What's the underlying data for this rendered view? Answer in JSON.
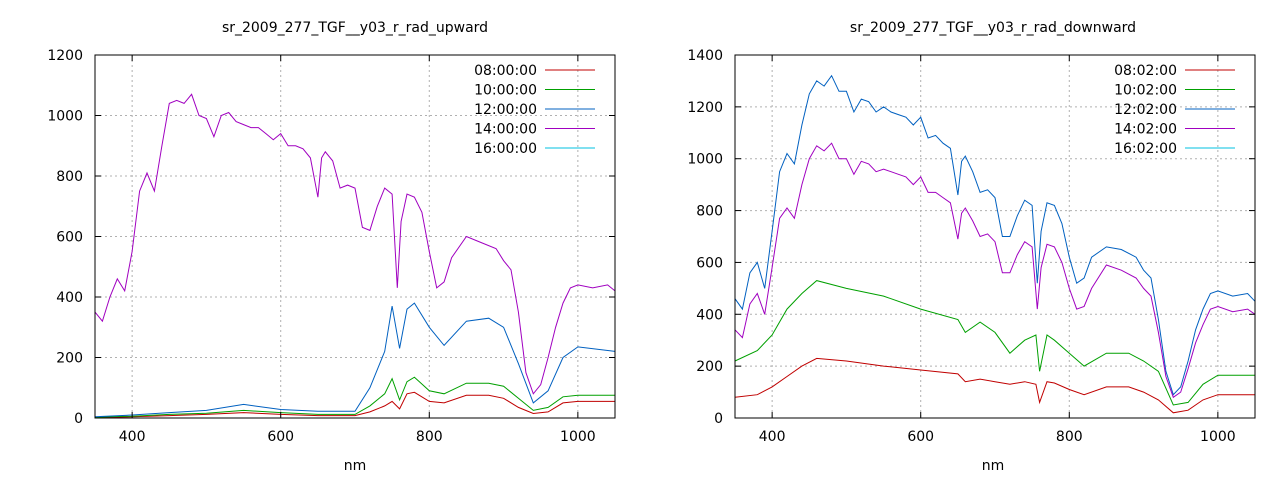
{
  "chart_data": [
    {
      "type": "line",
      "title": "sr_2009_277_TGF__y03_r_rad_upward",
      "xlabel": "nm",
      "ylabel": "",
      "xlim": [
        350,
        1050
      ],
      "ylim": [
        0,
        1200
      ],
      "xticks": [
        400,
        600,
        800,
        1000
      ],
      "yticks": [
        0,
        200,
        400,
        600,
        800,
        1000,
        1200
      ],
      "grid": true,
      "legend_position": "top-right",
      "series": [
        {
          "name": "08:00:00",
          "color": "#c00000",
          "x": [
            350,
            400,
            450,
            500,
            550,
            600,
            650,
            700,
            720,
            740,
            750,
            760,
            770,
            780,
            800,
            820,
            850,
            880,
            900,
            920,
            940,
            960,
            980,
            1000,
            1050
          ],
          "values": [
            2,
            4,
            8,
            12,
            18,
            12,
            8,
            8,
            20,
            40,
            55,
            30,
            80,
            85,
            55,
            50,
            75,
            75,
            65,
            35,
            15,
            20,
            50,
            55,
            55
          ]
        },
        {
          "name": "10:00:00",
          "color": "#00a000",
          "x": [
            350,
            400,
            450,
            500,
            550,
            600,
            650,
            700,
            720,
            740,
            750,
            760,
            770,
            780,
            800,
            820,
            850,
            880,
            900,
            920,
            940,
            960,
            980,
            1000,
            1050
          ],
          "values": [
            3,
            6,
            12,
            16,
            25,
            18,
            12,
            12,
            40,
            80,
            130,
            60,
            120,
            135,
            90,
            80,
            115,
            115,
            105,
            65,
            25,
            35,
            70,
            75,
            75
          ]
        },
        {
          "name": "12:00:00",
          "color": "#0060c0",
          "x": [
            350,
            400,
            450,
            500,
            550,
            600,
            650,
            700,
            720,
            740,
            750,
            760,
            770,
            780,
            800,
            820,
            850,
            880,
            900,
            920,
            940,
            960,
            980,
            1000,
            1050
          ],
          "values": [
            4,
            10,
            18,
            25,
            45,
            28,
            22,
            22,
            100,
            220,
            370,
            230,
            360,
            380,
            300,
            240,
            320,
            330,
            300,
            180,
            50,
            90,
            200,
            235,
            220
          ]
        },
        {
          "name": "14:00:00",
          "color": "#a000c0",
          "x": [
            350,
            360,
            370,
            380,
            390,
            400,
            410,
            420,
            430,
            440,
            450,
            460,
            470,
            480,
            490,
            500,
            510,
            520,
            530,
            540,
            550,
            560,
            570,
            580,
            590,
            600,
            610,
            620,
            630,
            640,
            650,
            655,
            660,
            670,
            680,
            690,
            700,
            710,
            720,
            730,
            740,
            750,
            757,
            762,
            770,
            780,
            790,
            800,
            810,
            820,
            830,
            850,
            870,
            890,
            900,
            910,
            920,
            930,
            940,
            950,
            960,
            970,
            980,
            990,
            1000,
            1020,
            1040,
            1050
          ],
          "values": [
            350,
            320,
            400,
            460,
            420,
            550,
            750,
            810,
            750,
            900,
            1040,
            1050,
            1040,
            1070,
            1000,
            990,
            930,
            1000,
            1010,
            980,
            970,
            960,
            960,
            940,
            920,
            940,
            900,
            900,
            890,
            860,
            730,
            860,
            880,
            850,
            760,
            770,
            760,
            630,
            620,
            700,
            760,
            740,
            430,
            650,
            740,
            730,
            680,
            550,
            430,
            450,
            530,
            600,
            580,
            560,
            520,
            490,
            350,
            150,
            80,
            110,
            200,
            300,
            380,
            430,
            440,
            430,
            440,
            420
          ]
        },
        {
          "name": "16:00:00",
          "color": "#00c0e0",
          "x": [
            350,
            1050
          ],
          "values": [
            0,
            0
          ]
        }
      ]
    },
    {
      "type": "line",
      "title": "sr_2009_277_TGF__y03_r_rad_downward",
      "xlabel": "nm",
      "ylabel": "",
      "xlim": [
        350,
        1050
      ],
      "ylim": [
        0,
        1400
      ],
      "xticks": [
        400,
        600,
        800,
        1000
      ],
      "yticks": [
        0,
        200,
        400,
        600,
        800,
        1000,
        1200,
        1400
      ],
      "grid": true,
      "legend_position": "top-right",
      "series": [
        {
          "name": "08:02:00",
          "color": "#c00000",
          "x": [
            350,
            380,
            400,
            420,
            440,
            460,
            500,
            550,
            600,
            650,
            660,
            680,
            700,
            720,
            740,
            755,
            760,
            770,
            780,
            800,
            820,
            850,
            880,
            900,
            920,
            940,
            960,
            980,
            1000,
            1050
          ],
          "values": [
            80,
            90,
            120,
            160,
            200,
            230,
            220,
            200,
            185,
            170,
            140,
            150,
            140,
            130,
            140,
            130,
            60,
            140,
            135,
            110,
            90,
            120,
            120,
            100,
            70,
            20,
            30,
            70,
            90,
            90
          ]
        },
        {
          "name": "10:02:00",
          "color": "#00a000",
          "x": [
            350,
            380,
            400,
            420,
            440,
            460,
            500,
            550,
            600,
            650,
            660,
            680,
            700,
            720,
            740,
            755,
            760,
            770,
            780,
            800,
            820,
            850,
            880,
            900,
            920,
            940,
            960,
            980,
            1000,
            1050
          ],
          "values": [
            220,
            260,
            320,
            420,
            480,
            530,
            500,
            470,
            420,
            380,
            330,
            370,
            330,
            250,
            300,
            320,
            180,
            320,
            300,
            250,
            200,
            250,
            250,
            220,
            180,
            50,
            60,
            130,
            165,
            165
          ]
        },
        {
          "name": "12:02:00",
          "color": "#0060c0",
          "x": [
            350,
            360,
            370,
            380,
            390,
            400,
            410,
            420,
            430,
            440,
            450,
            460,
            470,
            480,
            490,
            500,
            510,
            520,
            530,
            540,
            550,
            560,
            570,
            580,
            590,
            600,
            610,
            620,
            630,
            640,
            650,
            655,
            660,
            670,
            680,
            690,
            700,
            710,
            720,
            730,
            740,
            750,
            757,
            762,
            770,
            780,
            790,
            800,
            810,
            820,
            830,
            850,
            870,
            890,
            900,
            910,
            920,
            930,
            940,
            950,
            960,
            970,
            980,
            990,
            1000,
            1020,
            1040,
            1050
          ],
          "values": [
            460,
            420,
            560,
            600,
            500,
            720,
            950,
            1020,
            980,
            1130,
            1250,
            1300,
            1280,
            1320,
            1260,
            1260,
            1180,
            1230,
            1220,
            1180,
            1200,
            1180,
            1170,
            1160,
            1130,
            1160,
            1080,
            1090,
            1060,
            1040,
            860,
            990,
            1010,
            950,
            870,
            880,
            850,
            700,
            700,
            780,
            840,
            820,
            520,
            720,
            830,
            820,
            750,
            620,
            520,
            540,
            620,
            660,
            650,
            620,
            570,
            540,
            380,
            180,
            90,
            120,
            220,
            340,
            420,
            480,
            490,
            470,
            480,
            450
          ]
        },
        {
          "name": "14:02:00",
          "color": "#a000c0",
          "x": [
            350,
            360,
            370,
            380,
            390,
            400,
            410,
            420,
            430,
            440,
            450,
            460,
            470,
            480,
            490,
            500,
            510,
            520,
            530,
            540,
            550,
            560,
            570,
            580,
            590,
            600,
            610,
            620,
            630,
            640,
            650,
            655,
            660,
            670,
            680,
            690,
            700,
            710,
            720,
            730,
            740,
            750,
            757,
            762,
            770,
            780,
            790,
            800,
            810,
            820,
            830,
            850,
            870,
            890,
            900,
            910,
            920,
            930,
            940,
            950,
            960,
            970,
            980,
            990,
            1000,
            1020,
            1040,
            1050
          ],
          "values": [
            340,
            310,
            440,
            480,
            400,
            580,
            770,
            810,
            770,
            900,
            1000,
            1050,
            1030,
            1060,
            1000,
            1000,
            940,
            990,
            980,
            950,
            960,
            950,
            940,
            930,
            900,
            930,
            870,
            870,
            850,
            830,
            690,
            790,
            810,
            760,
            700,
            710,
            680,
            560,
            560,
            630,
            680,
            660,
            420,
            580,
            670,
            660,
            600,
            500,
            420,
            430,
            500,
            590,
            570,
            540,
            500,
            470,
            330,
            160,
            80,
            100,
            190,
            290,
            360,
            420,
            430,
            410,
            420,
            400
          ]
        },
        {
          "name": "16:02:00",
          "color": "#00c0e0",
          "x": [
            350,
            1050
          ],
          "values": [
            0,
            0
          ]
        }
      ]
    }
  ]
}
